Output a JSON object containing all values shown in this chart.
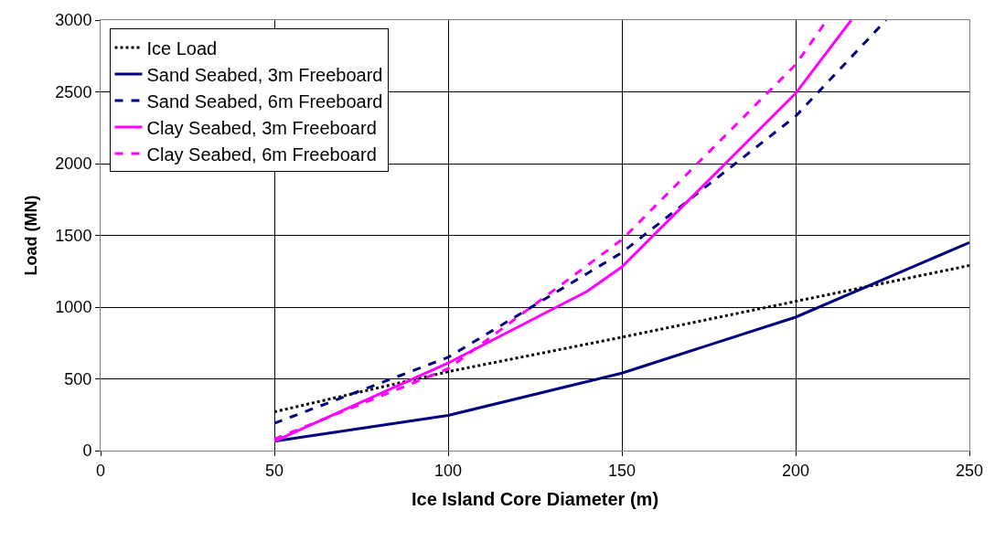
{
  "chart_data": {
    "type": "line",
    "xlabel": "Ice Island Core Diameter (m)",
    "ylabel": "Load (MN)",
    "xlim": [
      0,
      250
    ],
    "xticks": [
      0,
      50,
      100,
      150,
      200,
      250
    ],
    "ylim": [
      0,
      3000
    ],
    "yticks": [
      0,
      500,
      1000,
      1500,
      2000,
      2500,
      3000
    ],
    "grid": true,
    "legend": "top left",
    "marker": "none",
    "series": [
      {
        "name": "Ice Load",
        "color": "#000000",
        "line_style": "dotted",
        "x": [
          50,
          100,
          150,
          200,
          250
        ],
        "values": [
          270,
          550,
          790,
          1040,
          1290
        ]
      },
      {
        "name": "Sand Seabed, 3m Freeboard",
        "color": "#000080",
        "line_style": "solid",
        "x": [
          50,
          100,
          150,
          200,
          250
        ],
        "values": [
          65,
          245,
          540,
          930,
          1450
        ]
      },
      {
        "name": "Sand Seabed, 6m Freeboard",
        "color": "#000080",
        "line_style": "dashed",
        "x": [
          50,
          100,
          150,
          200,
          226
        ],
        "values": [
          190,
          650,
          1380,
          2330,
          3000
        ]
      },
      {
        "name": "Clay Seabed, 3m Freeboard",
        "color": "#ff00ff",
        "line_style": "solid",
        "x": [
          50,
          100,
          140,
          150,
          200,
          216
        ],
        "values": [
          65,
          610,
          1110,
          1280,
          2490,
          3000
        ]
      },
      {
        "name": "Clay Seabed, 6m Freeboard",
        "color": "#ff00ff",
        "line_style": "dashed",
        "x": [
          50,
          100,
          150,
          200,
          209
        ],
        "values": [
          80,
          570,
          1470,
          2690,
          3000
        ]
      }
    ]
  }
}
